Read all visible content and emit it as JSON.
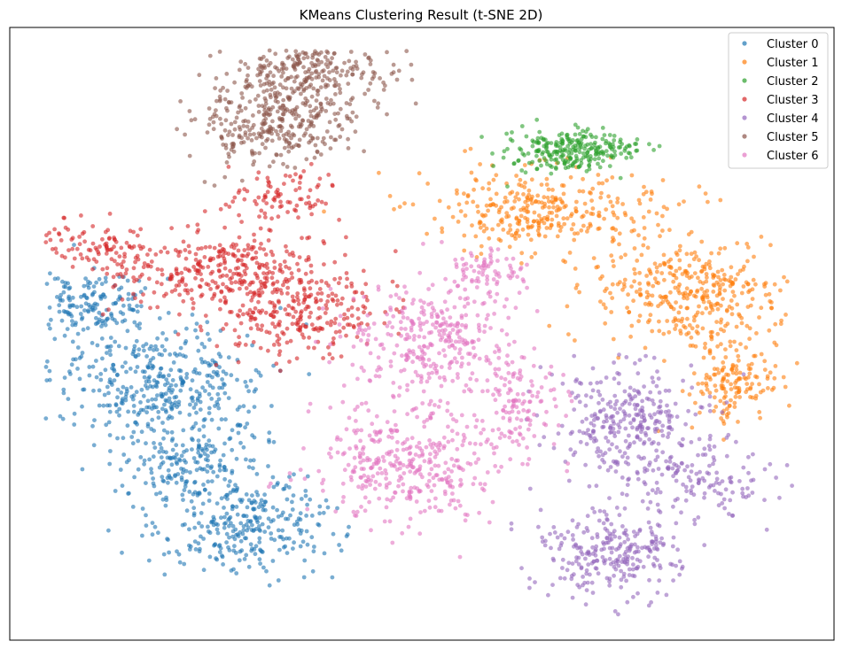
{
  "chart_data": {
    "type": "scatter",
    "title": "KMeans Clustering Result (t-SNE 2D)",
    "xlabel": "",
    "ylabel": "",
    "axes_visible": false,
    "legend_position": "top-right",
    "series": [
      {
        "name": "Cluster 0",
        "color": "#1f77b4",
        "regions": [
          {
            "cx": 0.18,
            "cy": 0.55,
            "rx": 0.12,
            "ry": 0.1,
            "weight": 400
          },
          {
            "cx": 0.1,
            "cy": 0.4,
            "rx": 0.07,
            "ry": 0.05,
            "weight": 160
          },
          {
            "cx": 0.28,
            "cy": 0.82,
            "rx": 0.1,
            "ry": 0.09,
            "weight": 300
          },
          {
            "cx": 0.22,
            "cy": 0.7,
            "rx": 0.08,
            "ry": 0.07,
            "weight": 180
          }
        ]
      },
      {
        "name": "Cluster 1",
        "color": "#ff7f0e",
        "regions": [
          {
            "cx": 0.65,
            "cy": 0.22,
            "rx": 0.13,
            "ry": 0.07,
            "weight": 330
          },
          {
            "cx": 0.82,
            "cy": 0.38,
            "rx": 0.1,
            "ry": 0.09,
            "weight": 360
          },
          {
            "cx": 0.88,
            "cy": 0.55,
            "rx": 0.05,
            "ry": 0.08,
            "weight": 160
          }
        ]
      },
      {
        "name": "Cluster 2",
        "color": "#2ca02c",
        "regions": [
          {
            "cx": 0.68,
            "cy": 0.11,
            "rx": 0.07,
            "ry": 0.035,
            "weight": 260
          }
        ]
      },
      {
        "name": "Cluster 3",
        "color": "#d62728",
        "regions": [
          {
            "cx": 0.25,
            "cy": 0.34,
            "rx": 0.12,
            "ry": 0.07,
            "weight": 320
          },
          {
            "cx": 0.35,
            "cy": 0.42,
            "rx": 0.09,
            "ry": 0.08,
            "weight": 260
          },
          {
            "cx": 0.11,
            "cy": 0.29,
            "rx": 0.06,
            "ry": 0.04,
            "weight": 90
          },
          {
            "cx": 0.33,
            "cy": 0.19,
            "rx": 0.07,
            "ry": 0.05,
            "weight": 90
          }
        ]
      },
      {
        "name": "Cluster 4",
        "color": "#9467bd",
        "regions": [
          {
            "cx": 0.75,
            "cy": 0.63,
            "rx": 0.08,
            "ry": 0.1,
            "weight": 320
          },
          {
            "cx": 0.73,
            "cy": 0.87,
            "rx": 0.08,
            "ry": 0.08,
            "weight": 280
          },
          {
            "cx": 0.85,
            "cy": 0.73,
            "rx": 0.07,
            "ry": 0.06,
            "weight": 110
          }
        ]
      },
      {
        "name": "Cluster 5",
        "color": "#8c564b",
        "regions": [
          {
            "cx": 0.37,
            "cy": -0.04,
            "rx": 0.09,
            "ry": 0.08,
            "weight": 330
          },
          {
            "cx": 0.31,
            "cy": 0.06,
            "rx": 0.09,
            "ry": 0.07,
            "weight": 290
          }
        ]
      },
      {
        "name": "Cluster 6",
        "color": "#e377c2",
        "regions": [
          {
            "cx": 0.52,
            "cy": 0.47,
            "rx": 0.1,
            "ry": 0.1,
            "weight": 340
          },
          {
            "cx": 0.48,
            "cy": 0.7,
            "rx": 0.1,
            "ry": 0.1,
            "weight": 370
          },
          {
            "cx": 0.62,
            "cy": 0.6,
            "rx": 0.05,
            "ry": 0.08,
            "weight": 120
          },
          {
            "cx": 0.58,
            "cy": 0.34,
            "rx": 0.04,
            "ry": 0.04,
            "weight": 70
          }
        ]
      }
    ]
  }
}
